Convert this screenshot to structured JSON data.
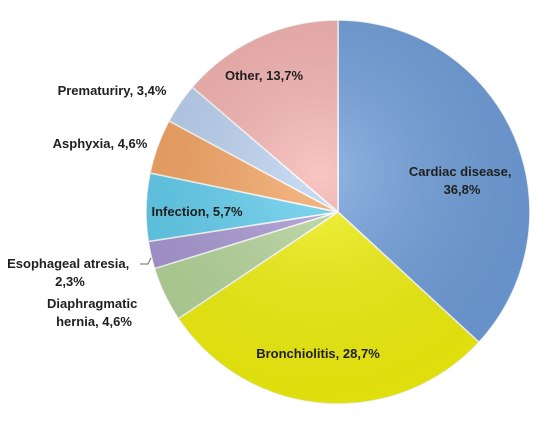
{
  "chart_data": {
    "type": "pie",
    "start_angle_deg": 0,
    "direction": "clockwise",
    "slices": [
      {
        "label": "Cardiac disease",
        "value": 36.8,
        "value_text": "36,8%",
        "color": "#6f9fdc"
      },
      {
        "label": "Bronchiolitis",
        "value": 28.7,
        "value_text": "28,7%",
        "color": "#f4f40c"
      },
      {
        "label": "Diaphragmatic hernia",
        "value": 4.6,
        "value_text": "4,6%",
        "color": "#b6d79a"
      },
      {
        "label": "Esophageal atresia",
        "value": 2.3,
        "value_text": "2,3%",
        "color": "#a898d4"
      },
      {
        "label": "Infection",
        "value": 5.7,
        "value_text": "5,7%",
        "color": "#5fcff0"
      },
      {
        "label": "Asphyxia",
        "value": 4.6,
        "value_text": "4,6%",
        "color": "#f7a460"
      },
      {
        "label": "Prematuriry",
        "value": 3.4,
        "value_text": "3,4%",
        "color": "#bcd3f3"
      },
      {
        "label": "Other",
        "value": 13.7,
        "value_text": "13,7%",
        "color": "#f7b3b0"
      }
    ],
    "labels": {
      "cardiac": [
        "Cardiac disease,",
        "36,8%"
      ],
      "bronchiolitis": [
        "Bronchiolitis, 28,7%"
      ],
      "diaphragmatic": [
        "Diaphragmatic",
        "hernia, 4,6%"
      ],
      "esophageal": [
        "Esophageal atresia,",
        "2,3%"
      ],
      "infection": [
        "Infection, 5,7%"
      ],
      "asphyxia": [
        "Asphyxia, 4,6%"
      ],
      "prematuriry": [
        "Prematuriry, 3,4%"
      ],
      "other": [
        "Other, 13,7%"
      ]
    }
  }
}
